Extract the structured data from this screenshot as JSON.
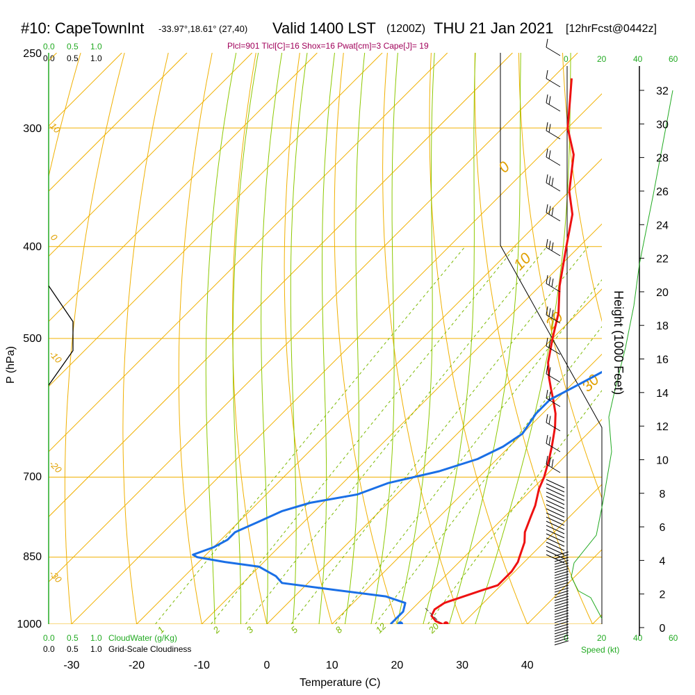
{
  "header": {
    "title_left": "#10: CapeTownInt",
    "title_coords": "-33.97°,18.61° (27,40)",
    "title_valid": "Valid 1400 LST",
    "title_z": "(1200Z)",
    "title_date": "THU 21 Jan 2021",
    "title_fcst": "[12hrFcst@0442z]"
  },
  "params_line": "Plcl=901 Tlcl[C]=16 Shox=16 Pwat[cm]=3 Cape[J]= 19",
  "cloud_scale_top": {
    "green": [
      "0.0",
      "0.5",
      "1.0"
    ],
    "black": [
      "0.0",
      "0.5",
      "1.0"
    ]
  },
  "cloud_scale_bottom": {
    "green": [
      "0.0",
      "0.5",
      "1.0"
    ],
    "green_label": "CloudWater (g/Kg)",
    "black": [
      "0.0",
      "0.5",
      "1.0"
    ],
    "black_label": "Grid-Scale Cloudiness"
  },
  "speed_scale_top": [
    "0",
    "20",
    "40",
    "60"
  ],
  "speed_scale_bottom": [
    "0",
    "20",
    "40",
    "60"
  ],
  "speed_label": "Speed (kt)",
  "colors": {
    "isotherm": "#f0b000",
    "dry_adiabat": "#f0b000",
    "moist_adiabat": "#8cc800",
    "mixing_ratio": "#7ab800",
    "temperature": "#ee1111",
    "dewpoint": "#1a6fe6",
    "cloud": "#22aa22"
  },
  "chart_data": {
    "type": "line",
    "title": "#10: CapeTownInt",
    "xlabel": "Temperature (C)",
    "ylabel": "P (hPa)",
    "y2label": "Height (1000 Feet)",
    "xlim": [
      -34,
      36
    ],
    "ylim": [
      1000,
      250
    ],
    "y_scale": "log",
    "x_ticks": [
      "-30",
      "-20",
      "-10",
      "0",
      "10",
      "20",
      "30",
      "40"
    ],
    "x_tick_values": [
      -30,
      -20,
      -10,
      0,
      10,
      20,
      30,
      40
    ],
    "y_ticks": [
      "1000",
      "850",
      "700",
      "500",
      "400",
      "300",
      "250"
    ],
    "y_tick_values": [
      1000,
      850,
      700,
      500,
      400,
      300,
      250
    ],
    "height_ticks": [
      "0",
      "2",
      "4",
      "6",
      "8",
      "10",
      "12",
      "14",
      "16",
      "18",
      "20",
      "22",
      "24",
      "26",
      "28",
      "30",
      "32"
    ],
    "isotherm_labels": [
      "10",
      "0",
      "-10",
      "-20",
      "-30"
    ],
    "adiabat_labels": [
      "0",
      "10",
      "20",
      "30"
    ],
    "mixing_ratio_labels": [
      "1",
      "2",
      "3",
      "5",
      "8",
      "12",
      "20"
    ],
    "series": [
      {
        "key": "temperature",
        "points": [
          [
            1000,
            27
          ],
          [
            993,
            25.5
          ],
          [
            980,
            24
          ],
          [
            965,
            23.5
          ],
          [
            950,
            24
          ],
          [
            935,
            26
          ],
          [
            920,
            28
          ],
          [
            910,
            29.5
          ],
          [
            900,
            29.5
          ],
          [
            880,
            29.5
          ],
          [
            860,
            29
          ],
          [
            850,
            28.5
          ],
          [
            820,
            27
          ],
          [
            800,
            25.5
          ],
          [
            770,
            24
          ],
          [
            750,
            23
          ],
          [
            720,
            21
          ],
          [
            700,
            20
          ],
          [
            670,
            18
          ],
          [
            650,
            16.5
          ],
          [
            620,
            14
          ],
          [
            600,
            12
          ],
          [
            580,
            9.5
          ],
          [
            565,
            7.5
          ],
          [
            550,
            5.5
          ],
          [
            530,
            3
          ],
          [
            500,
            0
          ],
          [
            470,
            -3
          ],
          [
            440,
            -7
          ],
          [
            400,
            -12
          ],
          [
            370,
            -16
          ],
          [
            350,
            -20
          ],
          [
            320,
            -25
          ],
          [
            300,
            -30
          ],
          [
            280,
            -34
          ],
          [
            266,
            -37
          ]
        ]
      },
      {
        "key": "dewpoint",
        "points": [
          [
            1000,
            19
          ],
          [
            990,
            19
          ],
          [
            970,
            19
          ],
          [
            950,
            18
          ],
          [
            935,
            14
          ],
          [
            920,
            5
          ],
          [
            905,
            -4
          ],
          [
            890,
            -6
          ],
          [
            880,
            -8
          ],
          [
            870,
            -10
          ],
          [
            860,
            -16
          ],
          [
            850,
            -21
          ],
          [
            845,
            -22
          ],
          [
            830,
            -20
          ],
          [
            815,
            -19
          ],
          [
            800,
            -19
          ],
          [
            780,
            -17
          ],
          [
            760,
            -15
          ],
          [
            745,
            -12
          ],
          [
            730,
            -6
          ],
          [
            710,
            -3
          ],
          [
            690,
            3
          ],
          [
            670,
            7
          ],
          [
            650,
            9
          ],
          [
            630,
            10
          ],
          [
            600,
            9
          ],
          [
            580,
            9
          ],
          [
            560,
            11
          ],
          [
            540,
            13
          ],
          [
            520,
            15
          ],
          [
            500,
            16
          ],
          [
            480,
            16
          ],
          [
            460,
            16
          ],
          [
            440,
            14
          ],
          [
            420,
            12
          ],
          [
            400,
            8
          ],
          [
            380,
            3
          ],
          [
            360,
            -2
          ],
          [
            340,
            -7
          ],
          [
            320,
            -12
          ],
          [
            300,
            -17
          ],
          [
            280,
            -22
          ],
          [
            266,
            -26
          ]
        ]
      },
      {
        "key": "cloudiness",
        "points": [
          [
            440,
            0
          ],
          [
            480,
            0.53
          ],
          [
            515,
            0.53
          ],
          [
            560,
            0
          ]
        ]
      }
    ],
    "surface_temperature": 27.5,
    "surface_dewpoint": 20.5
  }
}
